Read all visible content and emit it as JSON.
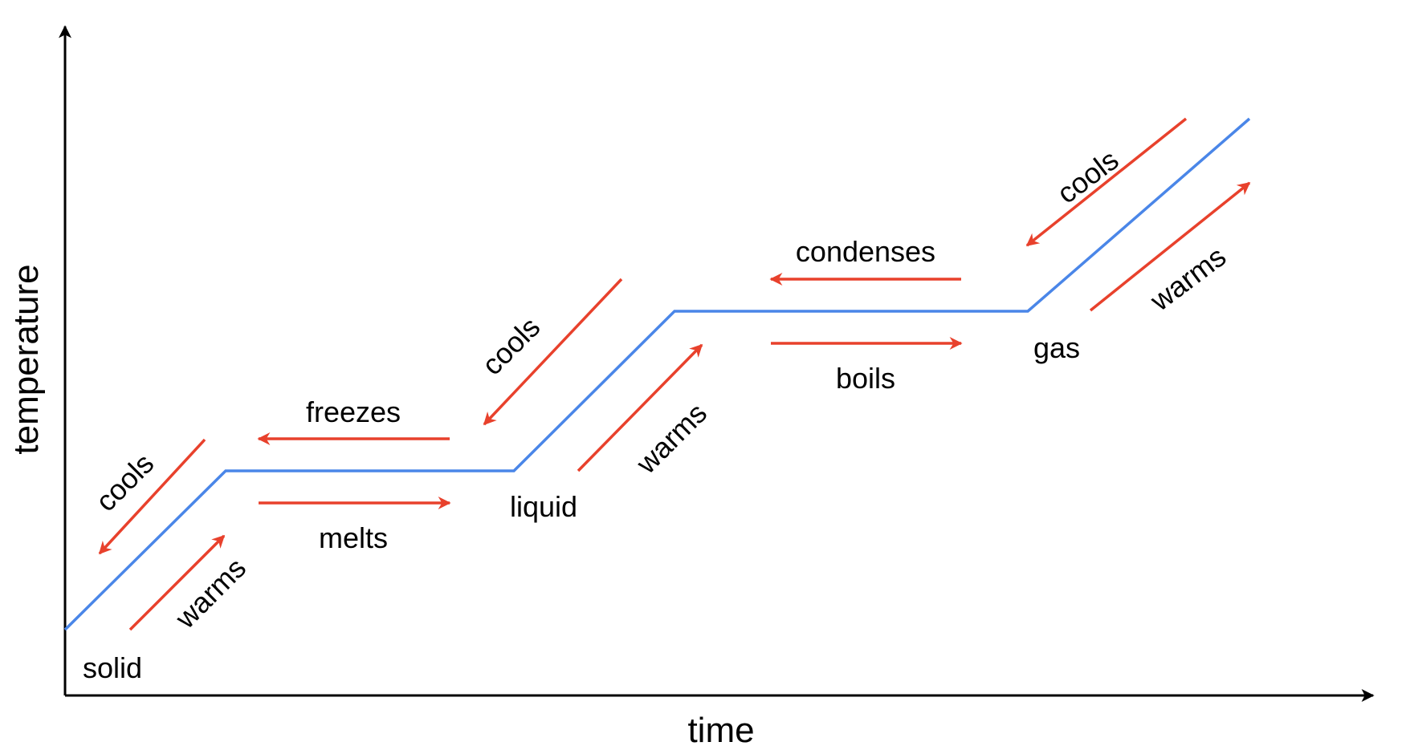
{
  "axes": {
    "x_label": "time",
    "y_label": "temperature"
  },
  "states": {
    "solid": "solid",
    "liquid": "liquid",
    "gas": "gas"
  },
  "processes": {
    "solid_warms": "warms",
    "solid_cools": "cools",
    "melts": "melts",
    "freezes": "freezes",
    "liquid_warms": "warms",
    "liquid_cools": "cools",
    "boils": "boils",
    "condenses": "condenses",
    "gas_warms": "warms",
    "gas_cools": "cools"
  },
  "colors": {
    "curve": "#4a86e8",
    "arrows": "#e8412c",
    "axes": "#000000"
  }
}
